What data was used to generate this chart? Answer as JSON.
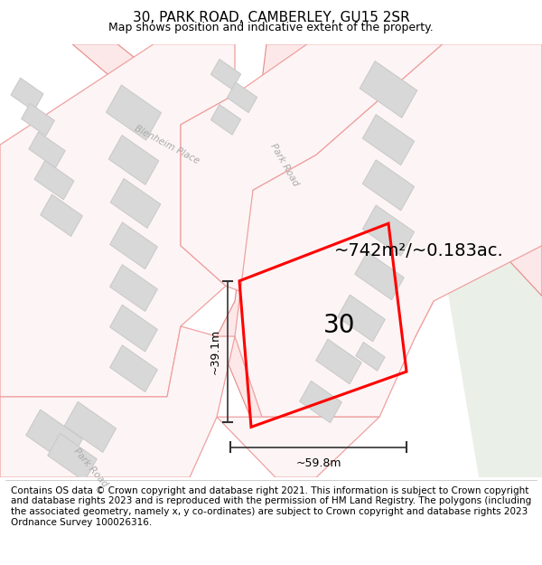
{
  "title": "30, PARK ROAD, CAMBERLEY, GU15 2SR",
  "subtitle": "Map shows position and indicative extent of the property.",
  "footer": "Contains OS data © Crown copyright and database right 2021. This information is subject to Crown copyright and database rights 2023 and is reproduced with the permission of HM Land Registry. The polygons (including the associated geometry, namely x, y co-ordinates) are subject to Crown copyright and database rights 2023 Ordnance Survey 100026316.",
  "area_label": "~742m²/~0.183ac.",
  "property_number": "30",
  "width_label": "~59.8m",
  "height_label": "~39.1m",
  "map_bg": "#ffffff",
  "green_bg": "#eaf0e8",
  "road_line_color": "#e88888",
  "road_fill_color": "#fce8e8",
  "plot_line_color": "#f0a0a0",
  "plot_fill_color": "#fdf5f5",
  "building_fill": "#d8d8d8",
  "building_edge": "#c8c8c8",
  "highlight_color": "#ff0000",
  "dim_color": "#333333",
  "title_fontsize": 11,
  "subtitle_fontsize": 9,
  "footer_fontsize": 7.5,
  "label_fontsize": 8,
  "area_fontsize": 14,
  "number_fontsize": 20,
  "dim_fontsize": 9
}
